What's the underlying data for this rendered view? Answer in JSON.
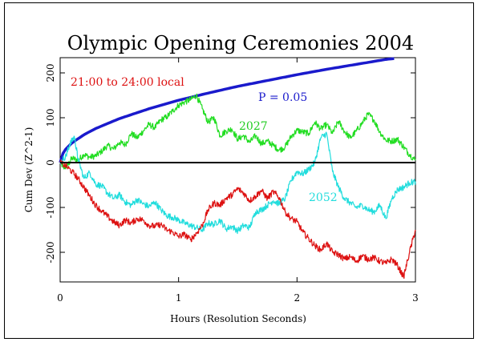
{
  "chart_data": {
    "type": "line",
    "title": "Olympic Opening Ceremonies 2004",
    "xlabel": "Hours (Resolution Seconds)",
    "ylabel": "Cum Dev (Z^2-1)",
    "xlim": [
      0,
      3
    ],
    "ylim": [
      -260,
      232
    ],
    "x_ticks": [
      0,
      1,
      2,
      3
    ],
    "y_ticks": [
      -200,
      -100,
      0,
      100,
      200
    ],
    "grid": false,
    "series": [
      {
        "name": "P = 0.05",
        "color": "#1a1acc",
        "kind": "envelope",
        "x": [
          0,
          0.005,
          0.02,
          0.05,
          0.1,
          0.2,
          0.3,
          0.5,
          0.75,
          1.0,
          1.25,
          1.5,
          1.75,
          2.0,
          2.25,
          2.5,
          2.75,
          2.82
        ],
        "values": [
          0,
          10,
          19,
          31,
          44,
          62,
          76,
          98,
          120,
          139,
          155,
          170,
          183,
          196,
          208,
          219,
          230,
          232
        ]
      },
      {
        "name": "2027",
        "color": "#22dd22",
        "x": [
          0,
          0.03,
          0.06,
          0.1,
          0.15,
          0.2,
          0.25,
          0.3,
          0.35,
          0.4,
          0.45,
          0.5,
          0.55,
          0.6,
          0.65,
          0.7,
          0.75,
          0.8,
          0.85,
          0.9,
          0.95,
          1.0,
          1.05,
          1.1,
          1.15,
          1.2,
          1.25,
          1.3,
          1.35,
          1.4,
          1.45,
          1.5,
          1.55,
          1.6,
          1.65,
          1.7,
          1.75,
          1.8,
          1.85,
          1.9,
          1.95,
          2.0,
          2.05,
          2.1,
          2.15,
          2.2,
          2.25,
          2.3,
          2.35,
          2.4,
          2.45,
          2.5,
          2.55,
          2.6,
          2.65,
          2.7,
          2.75,
          2.8,
          2.85,
          2.9,
          2.95,
          3.0
        ],
        "values": [
          0,
          -10,
          -8,
          10,
          5,
          18,
          12,
          15,
          25,
          38,
          30,
          45,
          40,
          65,
          55,
          70,
          85,
          78,
          95,
          102,
          115,
          128,
          135,
          140,
          150,
          120,
          90,
          100,
          60,
          70,
          75,
          52,
          60,
          45,
          60,
          42,
          48,
          38,
          28,
          35,
          58,
          72,
          68,
          65,
          90,
          75,
          85,
          65,
          92,
          70,
          55,
          70,
          88,
          108,
          95,
          68,
          50,
          48,
          52,
          35,
          18,
          5
        ]
      },
      {
        "name": "2052",
        "color": "#22dddd",
        "x": [
          0,
          0.05,
          0.08,
          0.12,
          0.15,
          0.2,
          0.25,
          0.3,
          0.35,
          0.4,
          0.45,
          0.5,
          0.55,
          0.6,
          0.65,
          0.7,
          0.75,
          0.8,
          0.85,
          0.9,
          0.95,
          1.0,
          1.05,
          1.1,
          1.15,
          1.2,
          1.25,
          1.3,
          1.35,
          1.4,
          1.45,
          1.5,
          1.55,
          1.6,
          1.65,
          1.7,
          1.75,
          1.8,
          1.85,
          1.9,
          1.95,
          2.0,
          2.05,
          2.1,
          2.15,
          2.2,
          2.25,
          2.3,
          2.35,
          2.4,
          2.45,
          2.5,
          2.55,
          2.6,
          2.65,
          2.7,
          2.75,
          2.8,
          2.85,
          2.9,
          2.95,
          3.0
        ],
        "values": [
          0,
          15,
          40,
          58,
          10,
          -35,
          -22,
          -48,
          -52,
          -68,
          -80,
          -72,
          -88,
          -95,
          -82,
          -92,
          -98,
          -88,
          -105,
          -118,
          -122,
          -128,
          -135,
          -140,
          -145,
          -150,
          -135,
          -138,
          -128,
          -148,
          -142,
          -152,
          -140,
          -145,
          -110,
          -105,
          -95,
          -85,
          -92,
          -80,
          -40,
          -20,
          -25,
          -15,
          0,
          55,
          65,
          -20,
          -55,
          -80,
          -90,
          -100,
          -95,
          -105,
          -110,
          -95,
          -125,
          -80,
          -60,
          -55,
          -45,
          -42
        ]
      },
      {
        "name": "21:00 to 24:00 local",
        "color": "#dd1111",
        "x": [
          0,
          0.05,
          0.1,
          0.15,
          0.2,
          0.25,
          0.3,
          0.35,
          0.4,
          0.45,
          0.5,
          0.55,
          0.6,
          0.65,
          0.7,
          0.75,
          0.8,
          0.85,
          0.9,
          0.95,
          1.0,
          1.05,
          1.1,
          1.15,
          1.2,
          1.25,
          1.3,
          1.35,
          1.4,
          1.45,
          1.5,
          1.55,
          1.6,
          1.65,
          1.7,
          1.75,
          1.8,
          1.85,
          1.9,
          1.95,
          2.0,
          2.05,
          2.1,
          2.15,
          2.2,
          2.25,
          2.3,
          2.35,
          2.4,
          2.45,
          2.5,
          2.55,
          2.6,
          2.65,
          2.7,
          2.75,
          2.8,
          2.85,
          2.9,
          2.95,
          3.0
        ],
        "values": [
          0,
          -8,
          -20,
          -35,
          -55,
          -75,
          -95,
          -108,
          -120,
          -132,
          -140,
          -128,
          -135,
          -125,
          -128,
          -140,
          -142,
          -138,
          -150,
          -155,
          -165,
          -160,
          -172,
          -158,
          -140,
          -105,
          -90,
          -95,
          -80,
          -72,
          -58,
          -68,
          -85,
          -75,
          -62,
          -80,
          -65,
          -78,
          -110,
          -125,
          -132,
          -155,
          -170,
          -185,
          -195,
          -180,
          -200,
          -205,
          -215,
          -210,
          -220,
          -208,
          -215,
          -212,
          -220,
          -225,
          -215,
          -230,
          -255,
          -200,
          -150
        ]
      }
    ],
    "annotations": {
      "envelope_label": "P = 0.05",
      "green_label": "2027",
      "cyan_label": "2052",
      "red_label": "21:00 to 24:00 local"
    }
  }
}
